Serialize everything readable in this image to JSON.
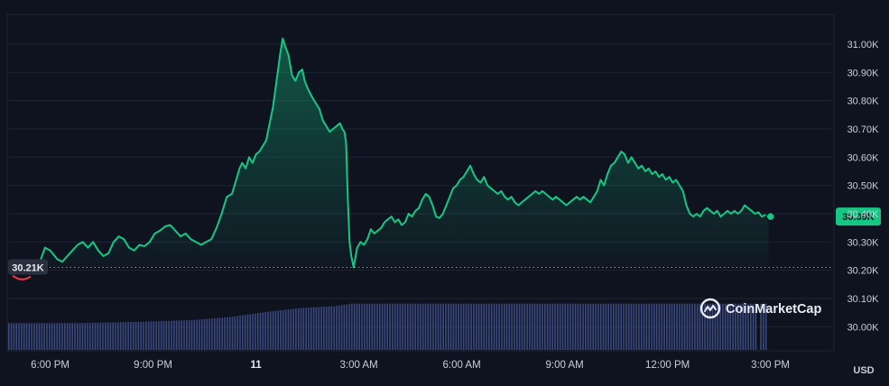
{
  "chart_data": {
    "type": "line",
    "currency": "USD",
    "brand": "CoinMarketCap",
    "y_ticks": [
      "31.00K",
      "30.90K",
      "30.80K",
      "30.70K",
      "30.60K",
      "30.50K",
      "30.40K",
      "30.30K",
      "30.20K",
      "30.10K",
      "30.00K"
    ],
    "y_tick_values": [
      31000,
      30900,
      30800,
      30700,
      30600,
      30500,
      30400,
      30300,
      30200,
      30100,
      30000
    ],
    "ylim": [
      29915,
      31105
    ],
    "x_ticks": [
      {
        "label": "6:00 PM",
        "t": 1.2
      },
      {
        "label": "9:00 PM",
        "t": 4.2
      },
      {
        "label": "11",
        "t": 7.2,
        "bold": true
      },
      {
        "label": "3:00 AM",
        "t": 10.2
      },
      {
        "label": "6:00 AM",
        "t": 13.2
      },
      {
        "label": "9:00 AM",
        "t": 16.2
      },
      {
        "label": "12:00 PM",
        "t": 19.2
      },
      {
        "label": "3:00 PM",
        "t": 22.2
      }
    ],
    "xlim": [
      0,
      24
    ],
    "reference_price": 30210,
    "reference_label": "30.21K",
    "current_price": 30390,
    "current_label": "30.39K",
    "colors": {
      "background": "#0f1320",
      "line": "#16c784",
      "negative": "#ea3943",
      "volume": "#3a4a80",
      "grid": "#1e2434"
    },
    "series": [
      {
        "points": [
          [
            0.0,
            30210
          ],
          [
            0.3,
            30200
          ],
          [
            0.6,
            30220
          ],
          [
            0.9,
            30230
          ],
          [
            1.05,
            30280
          ],
          [
            1.2,
            30270
          ],
          [
            1.4,
            30240
          ],
          [
            1.55,
            30230
          ],
          [
            1.7,
            30250
          ],
          [
            1.85,
            30270
          ],
          [
            2.0,
            30290
          ],
          [
            2.15,
            30300
          ],
          [
            2.3,
            30280
          ],
          [
            2.45,
            30300
          ],
          [
            2.6,
            30270
          ],
          [
            2.75,
            30250
          ],
          [
            2.9,
            30260
          ],
          [
            3.05,
            30300
          ],
          [
            3.2,
            30320
          ],
          [
            3.35,
            30310
          ],
          [
            3.5,
            30280
          ],
          [
            3.65,
            30270
          ],
          [
            3.8,
            30290
          ],
          [
            3.95,
            30285
          ],
          [
            4.1,
            30300
          ],
          [
            4.25,
            30330
          ],
          [
            4.4,
            30340
          ],
          [
            4.55,
            30355
          ],
          [
            4.7,
            30360
          ],
          [
            4.85,
            30340
          ],
          [
            5.0,
            30320
          ],
          [
            5.15,
            30330
          ],
          [
            5.3,
            30310
          ],
          [
            5.45,
            30300
          ],
          [
            5.6,
            30290
          ],
          [
            5.75,
            30300
          ],
          [
            5.9,
            30310
          ],
          [
            6.05,
            30350
          ],
          [
            6.2,
            30400
          ],
          [
            6.35,
            30460
          ],
          [
            6.5,
            30470
          ],
          [
            6.6,
            30510
          ],
          [
            6.72,
            30560
          ],
          [
            6.8,
            30580
          ],
          [
            6.9,
            30560
          ],
          [
            7.0,
            30600
          ],
          [
            7.1,
            30580
          ],
          [
            7.2,
            30610
          ],
          [
            7.3,
            30620
          ],
          [
            7.4,
            30640
          ],
          [
            7.5,
            30660
          ],
          [
            7.6,
            30720
          ],
          [
            7.7,
            30780
          ],
          [
            7.8,
            30870
          ],
          [
            7.9,
            30960
          ],
          [
            7.98,
            31020
          ],
          [
            8.06,
            30990
          ],
          [
            8.15,
            30960
          ],
          [
            8.25,
            30890
          ],
          [
            8.35,
            30870
          ],
          [
            8.45,
            30900
          ],
          [
            8.55,
            30910
          ],
          [
            8.62,
            30870
          ],
          [
            8.72,
            30840
          ],
          [
            8.85,
            30810
          ],
          [
            8.95,
            30790
          ],
          [
            9.05,
            30770
          ],
          [
            9.15,
            30730
          ],
          [
            9.25,
            30710
          ],
          [
            9.35,
            30690
          ],
          [
            9.45,
            30700
          ],
          [
            9.55,
            30710
          ],
          [
            9.65,
            30720
          ],
          [
            9.72,
            30700
          ],
          [
            9.78,
            30690
          ],
          [
            9.83,
            30650
          ],
          [
            9.88,
            30450
          ],
          [
            9.93,
            30300
          ],
          [
            9.98,
            30250
          ],
          [
            10.05,
            30210
          ],
          [
            10.15,
            30280
          ],
          [
            10.25,
            30300
          ],
          [
            10.35,
            30290
          ],
          [
            10.45,
            30310
          ],
          [
            10.55,
            30345
          ],
          [
            10.65,
            30330
          ],
          [
            10.75,
            30340
          ],
          [
            10.85,
            30350
          ],
          [
            10.95,
            30370
          ],
          [
            11.05,
            30380
          ],
          [
            11.15,
            30390
          ],
          [
            11.25,
            30370
          ],
          [
            11.35,
            30380
          ],
          [
            11.45,
            30360
          ],
          [
            11.55,
            30370
          ],
          [
            11.65,
            30400
          ],
          [
            11.75,
            30390
          ],
          [
            11.85,
            30410
          ],
          [
            11.95,
            30420
          ],
          [
            12.05,
            30450
          ],
          [
            12.15,
            30470
          ],
          [
            12.25,
            30460
          ],
          [
            12.35,
            30430
          ],
          [
            12.45,
            30390
          ],
          [
            12.55,
            30385
          ],
          [
            12.65,
            30400
          ],
          [
            12.75,
            30430
          ],
          [
            12.85,
            30460
          ],
          [
            12.95,
            30490
          ],
          [
            13.05,
            30500
          ],
          [
            13.15,
            30520
          ],
          [
            13.25,
            30530
          ],
          [
            13.35,
            30550
          ],
          [
            13.45,
            30570
          ],
          [
            13.55,
            30540
          ],
          [
            13.65,
            30520
          ],
          [
            13.75,
            30510
          ],
          [
            13.85,
            30530
          ],
          [
            13.95,
            30500
          ],
          [
            14.05,
            30490
          ],
          [
            14.15,
            30480
          ],
          [
            14.25,
            30470
          ],
          [
            14.35,
            30480
          ],
          [
            14.45,
            30460
          ],
          [
            14.55,
            30450
          ],
          [
            14.65,
            30460
          ],
          [
            14.75,
            30440
          ],
          [
            14.85,
            30430
          ],
          [
            14.95,
            30440
          ],
          [
            15.05,
            30450
          ],
          [
            15.15,
            30460
          ],
          [
            15.25,
            30470
          ],
          [
            15.35,
            30480
          ],
          [
            15.45,
            30470
          ],
          [
            15.55,
            30480
          ],
          [
            15.65,
            30470
          ],
          [
            15.75,
            30460
          ],
          [
            15.85,
            30450
          ],
          [
            15.95,
            30460
          ],
          [
            16.05,
            30450
          ],
          [
            16.15,
            30440
          ],
          [
            16.25,
            30430
          ],
          [
            16.35,
            30440
          ],
          [
            16.45,
            30450
          ],
          [
            16.55,
            30460
          ],
          [
            16.65,
            30450
          ],
          [
            16.75,
            30460
          ],
          [
            16.85,
            30450
          ],
          [
            16.95,
            30440
          ],
          [
            17.05,
            30460
          ],
          [
            17.15,
            30480
          ],
          [
            17.25,
            30520
          ],
          [
            17.35,
            30500
          ],
          [
            17.45,
            30540
          ],
          [
            17.55,
            30570
          ],
          [
            17.65,
            30580
          ],
          [
            17.75,
            30600
          ],
          [
            17.85,
            30620
          ],
          [
            17.95,
            30610
          ],
          [
            18.05,
            30580
          ],
          [
            18.15,
            30600
          ],
          [
            18.25,
            30580
          ],
          [
            18.35,
            30560
          ],
          [
            18.45,
            30570
          ],
          [
            18.55,
            30550
          ],
          [
            18.65,
            30560
          ],
          [
            18.75,
            30540
          ],
          [
            18.85,
            30550
          ],
          [
            18.95,
            30530
          ],
          [
            19.05,
            30540
          ],
          [
            19.15,
            30520
          ],
          [
            19.25,
            30530
          ],
          [
            19.35,
            30510
          ],
          [
            19.45,
            30520
          ],
          [
            19.55,
            30500
          ],
          [
            19.65,
            30480
          ],
          [
            19.75,
            30430
          ],
          [
            19.85,
            30400
          ],
          [
            19.95,
            30390
          ],
          [
            20.05,
            30400
          ],
          [
            20.15,
            30390
          ],
          [
            20.25,
            30410
          ],
          [
            20.35,
            30420
          ],
          [
            20.45,
            30410
          ],
          [
            20.55,
            30400
          ],
          [
            20.65,
            30410
          ],
          [
            20.75,
            30390
          ],
          [
            20.85,
            30400
          ],
          [
            20.95,
            30410
          ],
          [
            21.05,
            30400
          ],
          [
            21.15,
            30410
          ],
          [
            21.25,
            30400
          ],
          [
            21.35,
            30410
          ],
          [
            21.45,
            30430
          ],
          [
            21.55,
            30420
          ],
          [
            21.65,
            30410
          ],
          [
            21.75,
            30400
          ],
          [
            21.85,
            30405
          ],
          [
            21.95,
            30390
          ],
          [
            22.05,
            30395
          ],
          [
            22.15,
            30390
          ]
        ]
      }
    ],
    "volume": {
      "levels": [
        [
          0.0,
          0.55
        ],
        [
          2.0,
          0.55
        ],
        [
          4.0,
          0.58
        ],
        [
          5.5,
          0.62
        ],
        [
          6.5,
          0.68
        ],
        [
          7.5,
          0.78
        ],
        [
          8.5,
          0.86
        ],
        [
          9.5,
          0.9
        ],
        [
          10.0,
          0.95
        ],
        [
          22.2,
          0.95
        ]
      ],
      "dips": [
        [
          21.85,
          0.0
        ],
        [
          22.15,
          0.0
        ]
      ]
    }
  }
}
